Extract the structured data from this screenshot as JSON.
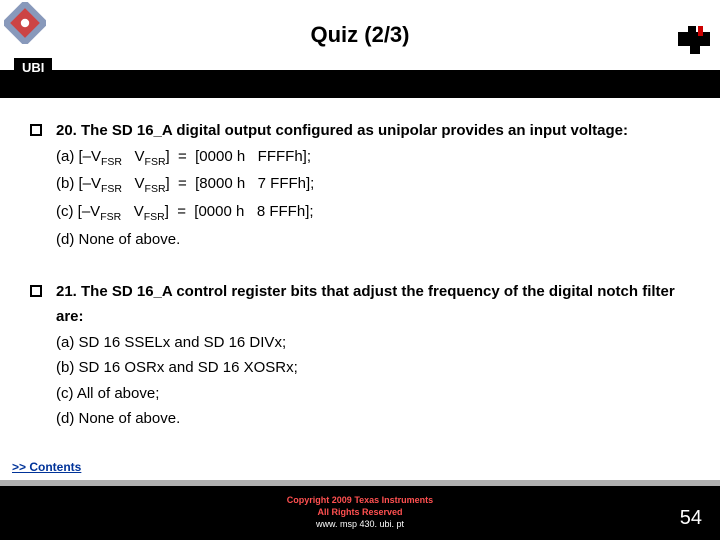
{
  "header": {
    "title": "Quiz (2/3)",
    "ubi": "UBI"
  },
  "questions": [
    {
      "prompt": "20. The SD 16_A digital output configured as unipolar provides an input voltage:",
      "options": [
        "(a) [–V<sub>FSR</sub>&nbsp;&nbsp;&nbsp;V<sub>FSR</sub>]&nbsp;&nbsp;=&nbsp;&nbsp;[0000 h&nbsp;&nbsp;&nbsp;FFFFh];",
        "(b) [–V<sub>FSR</sub>&nbsp;&nbsp;&nbsp;V<sub>FSR</sub>]&nbsp;&nbsp;=&nbsp;&nbsp;[8000 h&nbsp;&nbsp;&nbsp;7 FFFh];",
        "(c) [–V<sub>FSR</sub>&nbsp;&nbsp;&nbsp;V<sub>FSR</sub>]&nbsp;&nbsp;=&nbsp;&nbsp;[0000 h&nbsp;&nbsp;&nbsp;8 FFFh];",
        "(d) None of above."
      ]
    },
    {
      "prompt": "21. The SD 16_A control register bits that adjust the frequency of the digital notch filter are:",
      "options": [
        "(a) SD 16 SSELx and SD 16 DIVx;",
        "(b) SD 16 OSRx and SD 16 XOSRx;",
        "(c) All of above;",
        "(d) None of above."
      ]
    }
  ],
  "footer": {
    "contents": ">> Contents",
    "copyright": "Copyright  2009 Texas Instruments",
    "rights": "All Rights Reserved",
    "url": "www. msp 430. ubi. pt",
    "page": "54"
  },
  "colors": {
    "black": "#000000",
    "white": "#ffffff",
    "grey": "#b0b0b0",
    "link": "#003399",
    "red": "#ff5050"
  }
}
